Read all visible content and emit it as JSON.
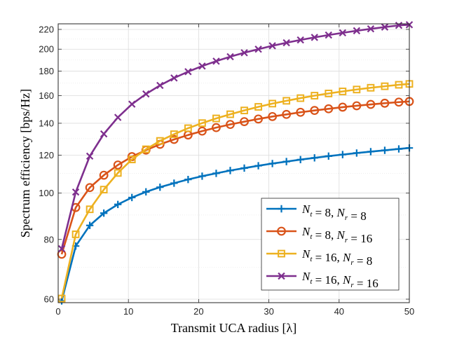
{
  "chart_data": {
    "type": "line",
    "title": "",
    "xlabel": "Transmit UCA radius [λ]",
    "ylabel": "Spectrum efficiency [bps/Hz]",
    "xlim": [
      0,
      50
    ],
    "ylim": [
      59,
      226
    ],
    "yscale": "log",
    "grid": true,
    "legend_location": "bottom-right",
    "x_ticks": [
      0,
      10,
      20,
      30,
      40,
      50
    ],
    "y_ticks": [
      60,
      80,
      100,
      120,
      140,
      160,
      180,
      200,
      220
    ],
    "x_tick_labels": [
      "0",
      "10",
      "20",
      "30",
      "40",
      "50"
    ],
    "y_tick_labels": [
      "60",
      "80",
      "100",
      "120",
      "140",
      "160",
      "180",
      "200",
      "220"
    ],
    "x": [
      0.5,
      2.5,
      4.5,
      6.5,
      8.5,
      10.5,
      12.5,
      14.5,
      16.5,
      18.5,
      20.5,
      22.5,
      24.5,
      26.5,
      28.5,
      30.5,
      32.5,
      34.5,
      36.5,
      38.5,
      40.5,
      42.5,
      44.5,
      46.5,
      48.5,
      50
    ],
    "series": [
      {
        "name": "Nt = 8, Nr = 8",
        "color": "#0072BD",
        "marker": "plus",
        "legend": {
          "nt": "8",
          "nr": "8"
        },
        "values": [
          59.5,
          77.5,
          85.6,
          90.8,
          94.7,
          97.9,
          100.6,
          102.9,
          104.9,
          106.8,
          108.5,
          110.0,
          111.5,
          112.8,
          114.1,
          115.3,
          116.4,
          117.5,
          118.5,
          119.5,
          120.4,
          121.3,
          122.1,
          122.9,
          123.7,
          124.3
        ]
      },
      {
        "name": "Nt = 8, Nr = 16",
        "color": "#D95319",
        "marker": "circle",
        "legend": {
          "nt": "8",
          "nr": "16"
        },
        "values": [
          74.5,
          93.3,
          102.7,
          109.0,
          114.5,
          119.2,
          123.0,
          126.5,
          129.5,
          132.3,
          134.8,
          137.1,
          139.2,
          141.1,
          142.9,
          144.6,
          146.1,
          147.6,
          148.9,
          150.1,
          151.3,
          152.3,
          153.3,
          154.2,
          155.0,
          155.5
        ]
      },
      {
        "name": "Nt = 16, Nr = 8",
        "color": "#EDB120",
        "marker": "square",
        "legend": {
          "nt": "16",
          "nr": "8"
        },
        "values": [
          60.2,
          82.0,
          92.5,
          101.7,
          110.2,
          117.6,
          123.5,
          128.6,
          132.8,
          136.7,
          140.1,
          143.3,
          146.2,
          148.9,
          151.5,
          153.9,
          156.0,
          158.0,
          159.9,
          161.6,
          163.2,
          164.7,
          166.1,
          167.3,
          168.5,
          169.2
        ]
      },
      {
        "name": "Nt = 16, Nr = 16",
        "color": "#7E2F8E",
        "marker": "x",
        "legend": {
          "nt": "16",
          "nr": "16"
        },
        "values": [
          76.5,
          100.5,
          119.5,
          133.0,
          144.0,
          153.5,
          161.2,
          168.0,
          174.1,
          179.5,
          184.4,
          188.8,
          192.9,
          196.6,
          200.0,
          203.3,
          206.3,
          209.1,
          211.7,
          214.1,
          216.4,
          218.6,
          220.6,
          222.5,
          224.3,
          225.0
        ]
      }
    ]
  }
}
